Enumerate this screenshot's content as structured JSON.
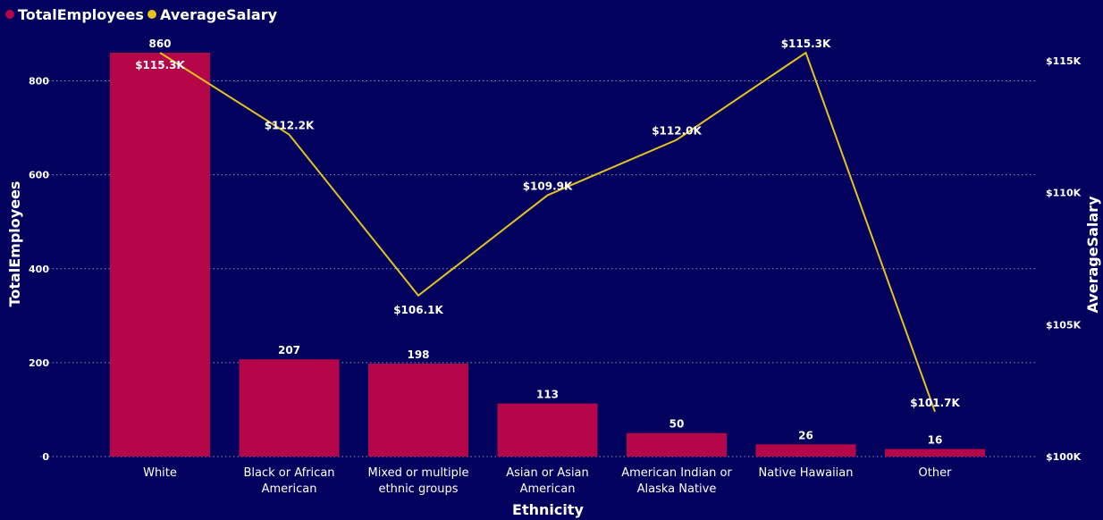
{
  "chart_data": {
    "type": "bar",
    "xlabel": "Ethnicity",
    "ylabel": "TotalEmployees",
    "y2label": "AverageSalary",
    "categories": [
      [
        "White"
      ],
      [
        "Black or African",
        "American"
      ],
      [
        "Mixed or multiple",
        "ethnic groups"
      ],
      [
        "Asian or Asian",
        "American"
      ],
      [
        "American Indian or",
        "Alaska Native"
      ],
      [
        "Native Hawaiian"
      ],
      [
        "Other"
      ]
    ],
    "series": [
      {
        "name": "TotalEmployees",
        "type": "bar",
        "axis": "left",
        "color": "#b5064a",
        "values": [
          860,
          207,
          198,
          113,
          50,
          26,
          16
        ],
        "labels": [
          "860",
          "207",
          "198",
          "113",
          "50",
          "26",
          "16"
        ]
      },
      {
        "name": "AverageSalary",
        "type": "line",
        "axis": "right",
        "color": "#e6c21e",
        "values": [
          115300,
          112200,
          106100,
          109900,
          112000,
          115300,
          101700
        ],
        "labels": [
          "$115.3K",
          "$112.2K",
          "$106.1K",
          "$109.9K",
          "$112.0K",
          "$115.3K",
          "$101.7K"
        ]
      }
    ],
    "ylim": [
      0,
      860
    ],
    "yticks": [
      0,
      200,
      400,
      600,
      800
    ],
    "y2lim": [
      100000,
      115300
    ],
    "y2ticks": [
      100000,
      105000,
      110000,
      115000
    ],
    "y2ticklabels": [
      "$100K",
      "$105K",
      "$110K",
      "$115K"
    ],
    "grid": true,
    "legend": "top-left"
  }
}
